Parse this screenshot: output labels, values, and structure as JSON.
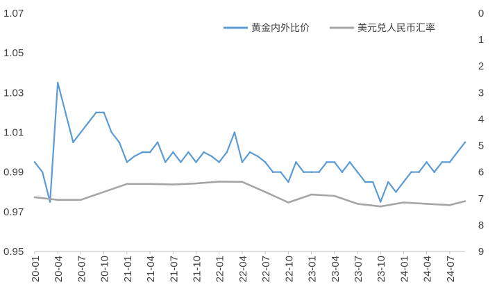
{
  "chart_data": {
    "type": "line",
    "title": "",
    "legend_position": "top-right",
    "grid": false,
    "y_left": {
      "range": [
        0.95,
        1.07
      ],
      "ticks": [
        "1.07",
        "1.05",
        "1.03",
        "1.01",
        "0.99",
        "0.97",
        "0.95"
      ],
      "tick_values": [
        1.07,
        1.05,
        1.03,
        1.01,
        0.99,
        0.97,
        0.95
      ]
    },
    "y_right": {
      "range": [
        0,
        9
      ],
      "reversed": true,
      "ticks": [
        "0",
        "1",
        "2",
        "3",
        "4",
        "5",
        "6",
        "7",
        "8",
        "9"
      ],
      "tick_values": [
        0,
        1,
        2,
        3,
        4,
        5,
        6,
        7,
        8,
        9
      ]
    },
    "x_ticks": [
      "20-01",
      "20-04",
      "20-07",
      "20-10",
      "21-01",
      "21-04",
      "21-07",
      "21-10",
      "22-01",
      "22-04",
      "22-07",
      "22-10",
      "23-01",
      "23-04",
      "23-07",
      "23-10",
      "24-01",
      "24-04",
      "24-07"
    ],
    "series": [
      {
        "name": "黄金内外比价",
        "axis": "left",
        "color": "#5b9bd5",
        "x": [
          "20-01",
          "20-02",
          "20-03",
          "20-04",
          "20-05",
          "20-06",
          "20-07",
          "20-08",
          "20-09",
          "20-10",
          "20-11",
          "20-12",
          "21-01",
          "21-02",
          "21-03",
          "21-04",
          "21-05",
          "21-06",
          "21-07",
          "21-08",
          "21-09",
          "21-10",
          "21-11",
          "21-12",
          "22-01",
          "22-02",
          "22-03",
          "22-04",
          "22-05",
          "22-06",
          "22-07",
          "22-08",
          "22-09",
          "22-10",
          "22-11",
          "22-12",
          "23-01",
          "23-02",
          "23-03",
          "23-04",
          "23-05",
          "23-06",
          "23-07",
          "23-08",
          "23-09",
          "23-10",
          "23-11",
          "23-12",
          "24-01",
          "24-02",
          "24-03",
          "24-04",
          "24-05",
          "24-06",
          "24-07",
          "24-08",
          "24-09"
        ],
        "values": [
          0.995,
          0.99,
          0.975,
          1.035,
          1.02,
          1.005,
          1.01,
          1.015,
          1.02,
          1.02,
          1.01,
          1.005,
          0.995,
          0.998,
          1.0,
          1.0,
          1.005,
          0.995,
          1.0,
          0.995,
          1.0,
          0.995,
          1.0,
          0.998,
          0.995,
          1.0,
          1.01,
          0.995,
          1.0,
          0.998,
          0.995,
          0.99,
          0.99,
          0.985,
          0.995,
          0.99,
          0.99,
          0.99,
          0.995,
          0.995,
          0.99,
          0.995,
          0.99,
          0.985,
          0.985,
          0.975,
          0.985,
          0.98,
          0.985,
          0.99,
          0.99,
          0.995,
          0.99,
          0.995,
          0.995,
          1.0,
          1.005
        ]
      },
      {
        "name": "美元兑人民币汇率",
        "axis": "right",
        "color": "#a5a5a5",
        "x": [
          "20-01",
          "20-04",
          "20-07",
          "20-10",
          "21-01",
          "21-04",
          "21-07",
          "21-10",
          "22-01",
          "22-04",
          "22-07",
          "22-10",
          "23-01",
          "23-04",
          "23-07",
          "23-10",
          "24-01",
          "24-04",
          "24-07",
          "24-09"
        ],
        "values": [
          6.95,
          7.05,
          7.05,
          6.75,
          6.45,
          6.45,
          6.47,
          6.43,
          6.36,
          6.37,
          6.75,
          7.15,
          6.85,
          6.9,
          7.2,
          7.3,
          7.15,
          7.2,
          7.25,
          7.1
        ]
      }
    ]
  }
}
